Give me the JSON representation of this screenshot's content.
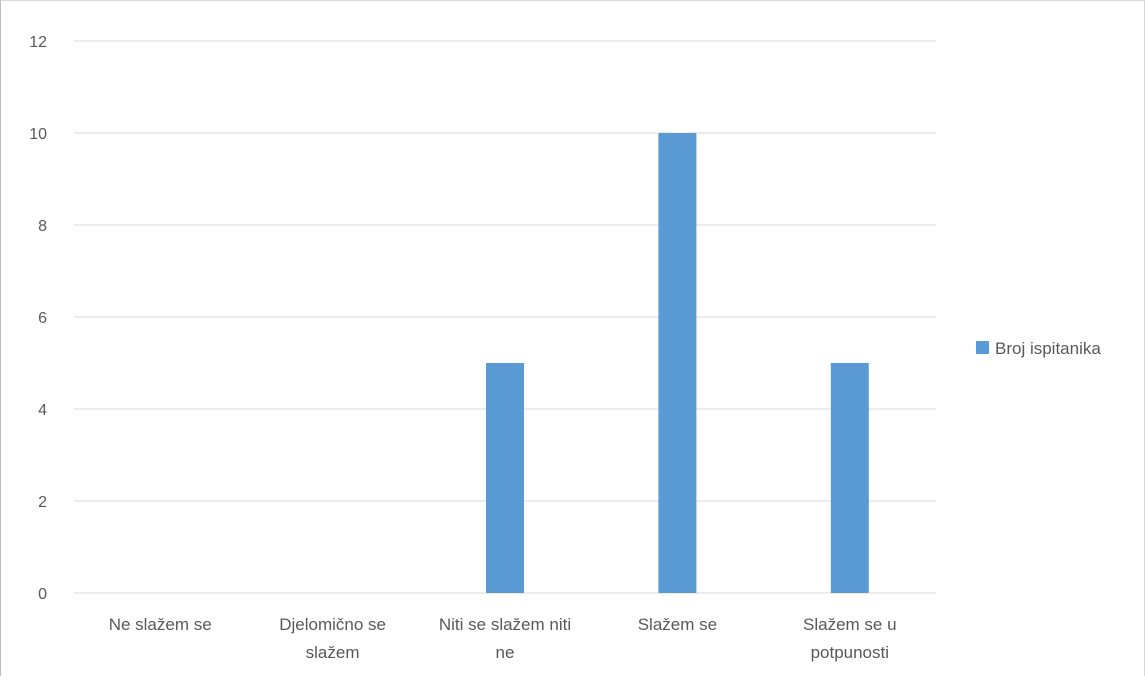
{
  "chart_data": {
    "type": "bar",
    "categories": [
      [
        "Ne slažem se"
      ],
      [
        "Djelomično se",
        "slažem"
      ],
      [
        "Niti se slažem niti",
        "ne"
      ],
      [
        "Slažem se"
      ],
      [
        "Slažem se u",
        "potpunosti"
      ]
    ],
    "series": [
      {
        "name": "Broj ispitanika",
        "values": [
          0,
          0,
          5,
          10,
          5
        ],
        "color": "#5b9bd5"
      }
    ],
    "ylim": [
      0,
      12
    ],
    "yticks": [
      0,
      2,
      4,
      6,
      8,
      10,
      12
    ],
    "grid": true,
    "legend_position": "right",
    "gridline_color": "#d9d9d9",
    "axis_text_color": "#595959"
  }
}
